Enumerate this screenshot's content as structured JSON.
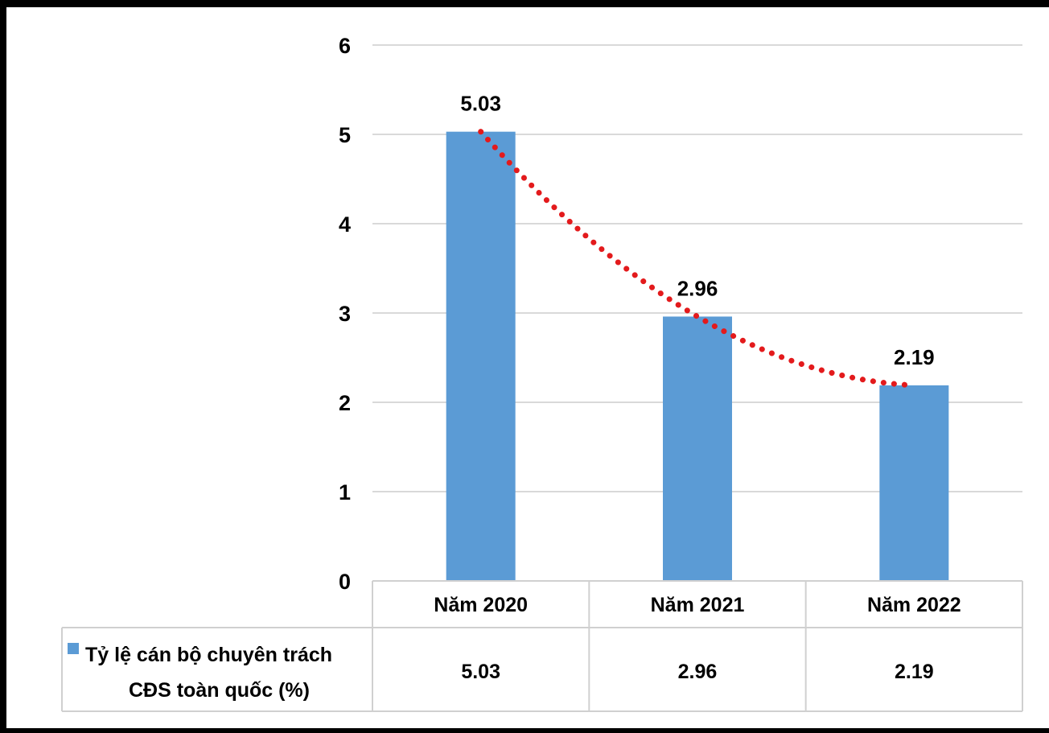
{
  "chart_data": {
    "type": "bar",
    "categories": [
      "Năm 2020",
      "Năm 2021",
      "Năm 2022"
    ],
    "series": [
      {
        "name": "Tỷ lệ cán bộ chuyên trách CĐS toàn quốc (%)",
        "name_lines": [
          "Tỷ lệ cán bộ chuyên trách",
          "CĐS toàn quốc (%)"
        ],
        "values": [
          5.03,
          2.96,
          2.19
        ],
        "color": "#5b9bd5"
      }
    ],
    "ylim": [
      0,
      6
    ],
    "yticks": [
      0,
      1,
      2,
      3,
      4,
      5,
      6
    ],
    "data_labels": [
      "5.03",
      "2.96",
      "2.19"
    ],
    "table_values": [
      "5.03",
      "2.96",
      "2.19"
    ],
    "trendline": {
      "style": "dotted",
      "color": "#e31a1c"
    },
    "grid": true,
    "legend": "data-table"
  }
}
